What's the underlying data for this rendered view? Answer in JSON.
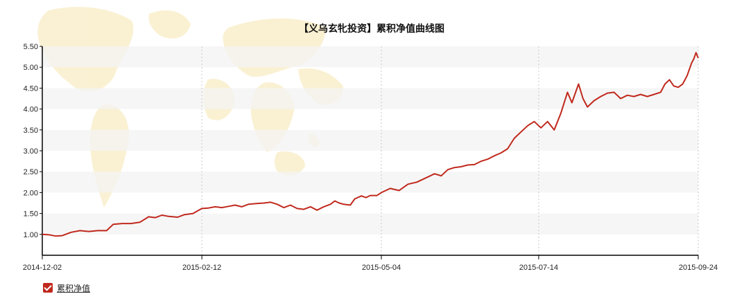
{
  "chart_data": {
    "type": "line",
    "title": "【义乌玄牝投资】累积净值曲线图",
    "xlabel": "",
    "ylabel": "",
    "x_ticks": [
      "2014-12-02",
      "2015-02-12",
      "2015-05-04",
      "2015-07-14",
      "2015-09-24"
    ],
    "y_ticks": [
      "1.00",
      "1.50",
      "2.00",
      "2.50",
      "3.00",
      "3.50",
      "4.00",
      "4.50",
      "5.00",
      "5.50"
    ],
    "ylim": [
      0.5,
      5.5
    ],
    "xlim": [
      "2014-12-02",
      "2015-09-24"
    ],
    "grid": "horizontal bands + vertical dotted lines",
    "legend_position": "bottom-left",
    "series": [
      {
        "name": "累积净值",
        "color": "#c0281c",
        "points": [
          [
            "2014-12-02",
            1.0
          ],
          [
            "2014-12-05",
            0.99
          ],
          [
            "2014-12-08",
            0.96
          ],
          [
            "2014-12-11",
            0.97
          ],
          [
            "2014-12-15",
            1.05
          ],
          [
            "2014-12-19",
            1.09
          ],
          [
            "2014-12-23",
            1.07
          ],
          [
            "2014-12-27",
            1.09
          ],
          [
            "2014-12-31",
            1.09
          ],
          [
            "2015-01-03",
            1.24
          ],
          [
            "2015-01-07",
            1.26
          ],
          [
            "2015-01-11",
            1.26
          ],
          [
            "2015-01-15",
            1.29
          ],
          [
            "2015-01-19",
            1.42
          ],
          [
            "2015-01-22",
            1.4
          ],
          [
            "2015-01-25",
            1.46
          ],
          [
            "2015-01-28",
            1.43
          ],
          [
            "2015-02-01",
            1.41
          ],
          [
            "2015-02-04",
            1.47
          ],
          [
            "2015-02-08",
            1.5
          ],
          [
            "2015-02-12",
            1.62
          ],
          [
            "2015-02-15",
            1.63
          ],
          [
            "2015-02-18",
            1.66
          ],
          [
            "2015-02-21",
            1.64
          ],
          [
            "2015-02-24",
            1.67
          ],
          [
            "2015-02-27",
            1.7
          ],
          [
            "2015-03-02",
            1.66
          ],
          [
            "2015-03-05",
            1.72
          ],
          [
            "2015-03-09",
            1.74
          ],
          [
            "2015-03-12",
            1.75
          ],
          [
            "2015-03-15",
            1.77
          ],
          [
            "2015-03-18",
            1.72
          ],
          [
            "2015-03-21",
            1.64
          ],
          [
            "2015-03-24",
            1.7
          ],
          [
            "2015-03-27",
            1.62
          ],
          [
            "2015-03-30",
            1.6
          ],
          [
            "2015-04-02",
            1.66
          ],
          [
            "2015-04-05",
            1.58
          ],
          [
            "2015-04-08",
            1.66
          ],
          [
            "2015-04-11",
            1.72
          ],
          [
            "2015-04-13",
            1.8
          ],
          [
            "2015-04-15",
            1.75
          ],
          [
            "2015-04-17",
            1.72
          ],
          [
            "2015-04-20",
            1.7
          ],
          [
            "2015-04-22",
            1.85
          ],
          [
            "2015-04-25",
            1.92
          ],
          [
            "2015-04-27",
            1.88
          ],
          [
            "2015-04-29",
            1.93
          ],
          [
            "2015-05-02",
            1.93
          ],
          [
            "2015-05-04",
            2.0
          ],
          [
            "2015-05-08",
            2.1
          ],
          [
            "2015-05-12",
            2.05
          ],
          [
            "2015-05-16",
            2.2
          ],
          [
            "2015-05-20",
            2.25
          ],
          [
            "2015-05-24",
            2.35
          ],
          [
            "2015-05-28",
            2.45
          ],
          [
            "2015-05-31",
            2.4
          ],
          [
            "2015-06-03",
            2.55
          ],
          [
            "2015-06-06",
            2.6
          ],
          [
            "2015-06-09",
            2.62
          ],
          [
            "2015-06-12",
            2.66
          ],
          [
            "2015-06-15",
            2.67
          ],
          [
            "2015-06-18",
            2.75
          ],
          [
            "2015-06-21",
            2.8
          ],
          [
            "2015-06-24",
            2.88
          ],
          [
            "2015-06-27",
            2.95
          ],
          [
            "2015-06-30",
            3.05
          ],
          [
            "2015-07-03",
            3.3
          ],
          [
            "2015-07-06",
            3.45
          ],
          [
            "2015-07-09",
            3.6
          ],
          [
            "2015-07-12",
            3.7
          ],
          [
            "2015-07-15",
            3.55
          ],
          [
            "2015-07-18",
            3.7
          ],
          [
            "2015-07-21",
            3.5
          ],
          [
            "2015-07-24",
            3.9
          ],
          [
            "2015-07-27",
            4.4
          ],
          [
            "2015-07-29",
            4.15
          ],
          [
            "2015-08-01",
            4.6
          ],
          [
            "2015-08-03",
            4.25
          ],
          [
            "2015-08-05",
            4.05
          ],
          [
            "2015-08-08",
            4.2
          ],
          [
            "2015-08-11",
            4.3
          ],
          [
            "2015-08-14",
            4.38
          ],
          [
            "2015-08-17",
            4.4
          ],
          [
            "2015-08-20",
            4.25
          ],
          [
            "2015-08-23",
            4.33
          ],
          [
            "2015-08-26",
            4.3
          ],
          [
            "2015-08-29",
            4.35
          ],
          [
            "2015-09-01",
            4.3
          ],
          [
            "2015-09-04",
            4.35
          ],
          [
            "2015-09-07",
            4.4
          ],
          [
            "2015-09-09",
            4.6
          ],
          [
            "2015-09-11",
            4.7
          ],
          [
            "2015-09-13",
            4.55
          ],
          [
            "2015-09-15",
            4.52
          ],
          [
            "2015-09-17",
            4.6
          ],
          [
            "2015-09-19",
            4.8
          ],
          [
            "2015-09-20",
            4.95
          ],
          [
            "2015-09-21",
            5.1
          ],
          [
            "2015-09-22",
            5.2
          ],
          [
            "2015-09-23",
            5.35
          ],
          [
            "2015-09-24",
            5.22
          ]
        ]
      }
    ]
  }
}
